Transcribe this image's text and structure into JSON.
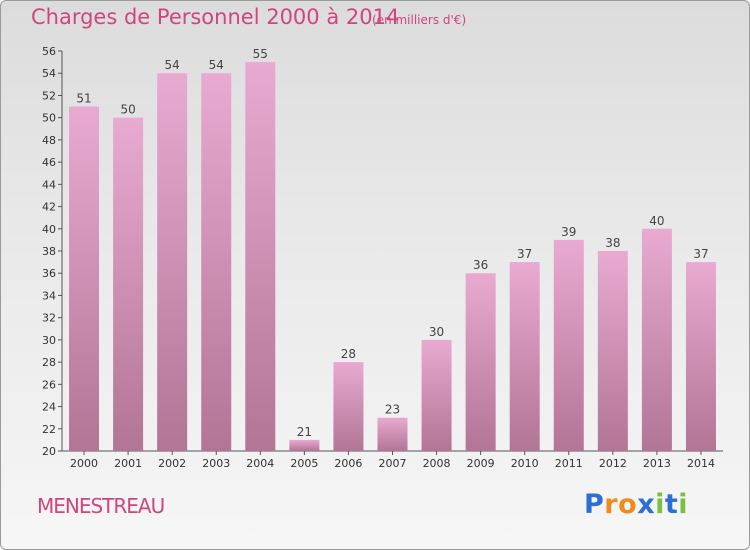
{
  "title": "Charges de Personnel 2000 à 2014",
  "subtitle": "(en milliers d'€)",
  "commune": "MENESTREAU",
  "logo": {
    "letters": [
      "P",
      "r",
      "o",
      "x",
      "i",
      "t",
      "i"
    ],
    "colors": [
      "#2b6fd6",
      "#f08a1c",
      "#f08a1c",
      "#2b6fd6",
      "#7ac143",
      "#2b6fd6",
      "#7ac143"
    ]
  },
  "colors": {
    "bar_top": "#e8aad0",
    "bar_bottom": "#b27596",
    "accent": "#d0457d"
  },
  "chart_data": {
    "type": "bar",
    "categories": [
      "2000",
      "2001",
      "2002",
      "2003",
      "2004",
      "2005",
      "2006",
      "2007",
      "2008",
      "2009",
      "2010",
      "2011",
      "2012",
      "2013",
      "2014"
    ],
    "values": [
      51,
      50,
      54,
      54,
      55,
      21,
      28,
      23,
      30,
      36,
      37,
      39,
      38,
      40,
      37
    ],
    "title": "Charges de Personnel 2000 à 2014",
    "ylabel": "",
    "xlabel": "",
    "ylim": [
      20,
      56
    ],
    "ytick_step": 2,
    "grid": false,
    "data_labels": true
  }
}
